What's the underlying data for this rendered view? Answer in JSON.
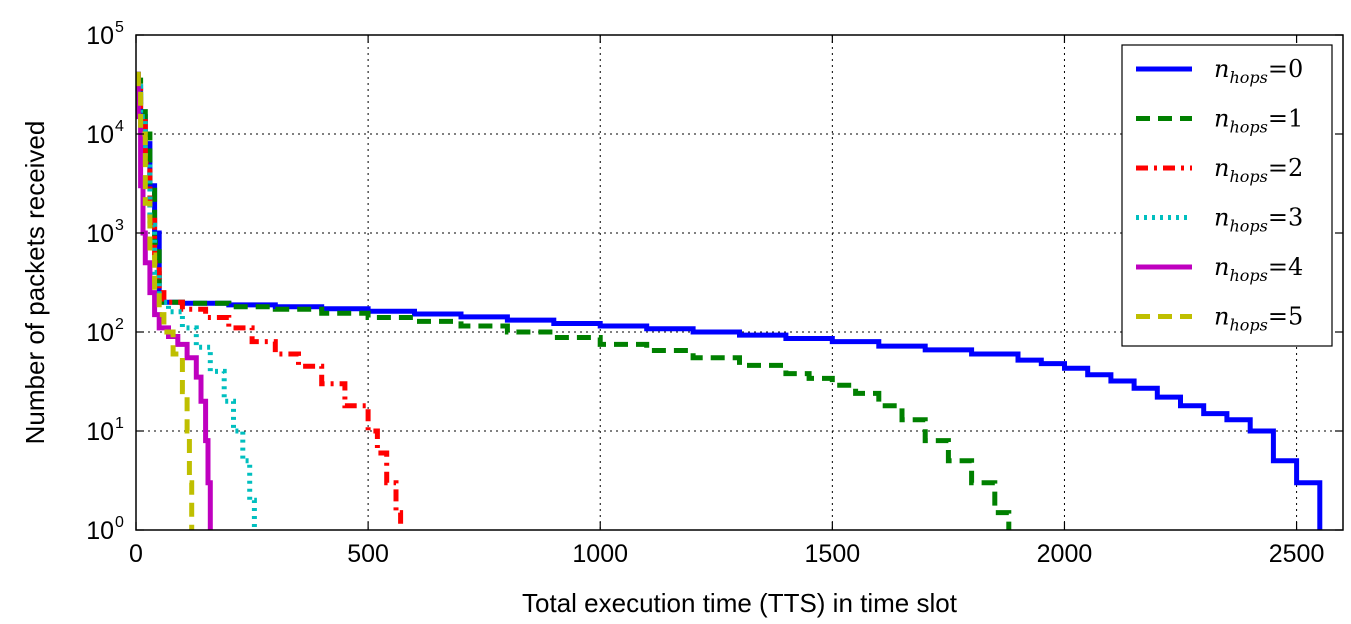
{
  "chart_data": {
    "type": "line",
    "title": "",
    "xlabel": "Total execution time (TTS) in time slot",
    "ylabel": "Number of packets received",
    "xlim": [
      0,
      2600
    ],
    "ylim": [
      1,
      100000
    ],
    "yscale": "log",
    "grid": true,
    "legend_position": "top-right",
    "x_ticks": [
      0,
      500,
      1000,
      1500,
      2000,
      2500
    ],
    "x_tick_labels": [
      "0",
      "500",
      "1000",
      "1500",
      "2000",
      "2500"
    ],
    "y_ticks": [
      1,
      10,
      100,
      1000,
      10000,
      100000
    ],
    "y_tick_labels": [
      {
        "base": "10",
        "exp": "0"
      },
      {
        "base": "10",
        "exp": "1"
      },
      {
        "base": "10",
        "exp": "2"
      },
      {
        "base": "10",
        "exp": "3"
      },
      {
        "base": "10",
        "exp": "4"
      },
      {
        "base": "10",
        "exp": "5"
      }
    ],
    "series": [
      {
        "name": "n_hops=0",
        "legend": {
          "base": "n",
          "sub": "hops",
          "rest": "=0"
        },
        "color": "#0000ff",
        "style": "solid",
        "x": [
          0,
          5,
          10,
          20,
          30,
          40,
          50,
          100,
          200,
          300,
          400,
          500,
          600,
          700,
          800,
          900,
          1000,
          1100,
          1200,
          1300,
          1400,
          1500,
          1600,
          1700,
          1800,
          1900,
          1950,
          2000,
          2050,
          2100,
          2150,
          2200,
          2250,
          2300,
          2350,
          2400,
          2450,
          2500,
          2550
        ],
        "y": [
          40000,
          30000,
          15000,
          8000,
          3000,
          1000,
          200,
          195,
          188,
          180,
          172,
          162,
          152,
          142,
          132,
          122,
          115,
          108,
          100,
          93,
          86,
          80,
          72,
          66,
          60,
          52,
          48,
          43,
          37,
          32,
          27,
          22,
          18,
          15,
          13,
          10,
          5,
          3,
          1
        ]
      },
      {
        "name": "n_hops=1",
        "legend": {
          "base": "n",
          "sub": "hops",
          "rest": "=1"
        },
        "color": "#008000",
        "style": "dashed",
        "x": [
          0,
          5,
          10,
          20,
          30,
          40,
          50,
          100,
          200,
          300,
          400,
          500,
          600,
          700,
          800,
          900,
          1000,
          1100,
          1200,
          1300,
          1400,
          1450,
          1500,
          1550,
          1600,
          1650,
          1700,
          1750,
          1800,
          1850,
          1880
        ],
        "y": [
          40000,
          35000,
          20000,
          10000,
          3000,
          800,
          200,
          195,
          180,
          170,
          155,
          140,
          128,
          115,
          100,
          88,
          75,
          65,
          55,
          46,
          38,
          34,
          29,
          24,
          18,
          13,
          8,
          5,
          3,
          1.5,
          1
        ]
      },
      {
        "name": "n_hops=2",
        "legend": {
          "base": "n",
          "sub": "hops",
          "rest": "=2"
        },
        "color": "#ff0000",
        "style": "dashdot",
        "x": [
          0,
          5,
          10,
          20,
          30,
          40,
          50,
          60,
          100,
          150,
          200,
          250,
          300,
          350,
          400,
          450,
          500,
          520,
          540,
          560,
          570
        ],
        "y": [
          40000,
          30000,
          15000,
          5000,
          1500,
          500,
          250,
          200,
          170,
          140,
          110,
          80,
          60,
          45,
          30,
          18,
          10,
          6,
          3,
          1.5,
          1
        ]
      },
      {
        "name": "n_hops=3",
        "legend": {
          "base": "n",
          "sub": "hops",
          "rest": "=3"
        },
        "color": "#00bfbf",
        "style": "dotted",
        "x": [
          0,
          5,
          10,
          20,
          30,
          40,
          50,
          70,
          100,
          130,
          160,
          190,
          210,
          230,
          245,
          255
        ],
        "y": [
          40000,
          30000,
          15000,
          5000,
          1200,
          400,
          200,
          160,
          110,
          70,
          40,
          20,
          10,
          5,
          2,
          1
        ]
      },
      {
        "name": "n_hops=4",
        "legend": {
          "base": "n",
          "sub": "hops",
          "rest": "=4"
        },
        "color": "#bf00bf",
        "style": "solid",
        "x": [
          0,
          5,
          10,
          15,
          20,
          30,
          40,
          50,
          70,
          90,
          110,
          130,
          140,
          150,
          155,
          160
        ],
        "y": [
          40000,
          15000,
          3000,
          1000,
          500,
          250,
          150,
          110,
          90,
          75,
          55,
          35,
          20,
          8,
          3,
          1
        ]
      },
      {
        "name": "n_hops=5",
        "legend": {
          "base": "n",
          "sub": "hops",
          "rest": "=5"
        },
        "color": "#bfbf00",
        "style": "dashed",
        "x": [
          0,
          5,
          10,
          20,
          30,
          40,
          50,
          60,
          80,
          100,
          110,
          115,
          120
        ],
        "y": [
          40000,
          30000,
          10000,
          2000,
          600,
          250,
          150,
          100,
          60,
          25,
          10,
          3,
          1
        ]
      }
    ]
  }
}
